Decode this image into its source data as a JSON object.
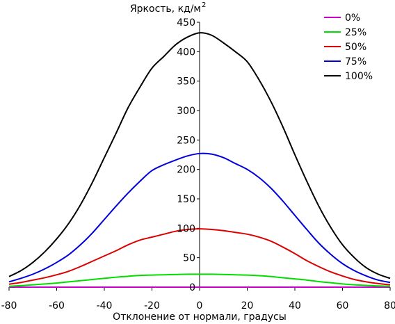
{
  "chart_data": {
    "type": "line",
    "ylabel": "Яркость, кд/м",
    "ylabel_sup": "2",
    "xlabel": "Отклонение от нормали, градусы",
    "xlim": [
      -80,
      80
    ],
    "ylim": [
      0,
      450
    ],
    "x_ticks": [
      "-80",
      "-60",
      "-40",
      "-20",
      "0",
      "20",
      "40",
      "60",
      "80"
    ],
    "y_ticks": [
      "0",
      "50",
      "100",
      "150",
      "200",
      "250",
      "300",
      "350",
      "400",
      "450"
    ],
    "legend_position": "top-right",
    "x": [
      -80,
      -75,
      -70,
      -65,
      -60,
      -55,
      -50,
      -45,
      -40,
      -35,
      -30,
      -25,
      -20,
      -15,
      -10,
      -5,
      0,
      5,
      10,
      15,
      20,
      25,
      30,
      35,
      40,
      45,
      50,
      55,
      60,
      65,
      70,
      75,
      80
    ],
    "series": [
      {
        "name": "0%",
        "color": "#cc00cc",
        "values": [
          0,
          0,
          0,
          0,
          0,
          0,
          0,
          0,
          0,
          0,
          0,
          0,
          0,
          0,
          0,
          0,
          0,
          0,
          0,
          0,
          0,
          0,
          0,
          0,
          0,
          0,
          0,
          0,
          0,
          0,
          0,
          0,
          0
        ]
      },
      {
        "name": "25%",
        "color": "#00dd00",
        "values": [
          1.5,
          2.5,
          4,
          5.5,
          7,
          9,
          11,
          13,
          15,
          17,
          18.5,
          20,
          20.5,
          21,
          21.5,
          22,
          22,
          22,
          21.5,
          21,
          20.5,
          19.5,
          18,
          16,
          14,
          12,
          9.5,
          7.5,
          5.5,
          4,
          3,
          2,
          1.5
        ]
      },
      {
        "name": "50%",
        "color": "#dd0000",
        "values": [
          5,
          8,
          12,
          16,
          21,
          27,
          35,
          44,
          53,
          62,
          72,
          80,
          85,
          90,
          95,
          98,
          99,
          98,
          96,
          93,
          90,
          85,
          78,
          68,
          57,
          45,
          35,
          26,
          19,
          13,
          9,
          6,
          4
        ]
      },
      {
        "name": "75%",
        "color": "#0000dd",
        "values": [
          9,
          15,
          22,
          31,
          42,
          55,
          72,
          92,
          115,
          138,
          160,
          180,
          198,
          208,
          216,
          223,
          227,
          226,
          220,
          210,
          200,
          186,
          168,
          146,
          122,
          98,
          75,
          56,
          40,
          28,
          19,
          12,
          8
        ]
      },
      {
        "name": "100%",
        "color": "#000000",
        "values": [
          18,
          28,
          42,
          60,
          82,
          108,
          140,
          178,
          220,
          262,
          305,
          340,
          372,
          392,
          412,
          425,
          432,
          428,
          415,
          400,
          383,
          352,
          315,
          272,
          225,
          180,
          138,
          102,
          72,
          50,
          33,
          22,
          15
        ]
      }
    ]
  }
}
